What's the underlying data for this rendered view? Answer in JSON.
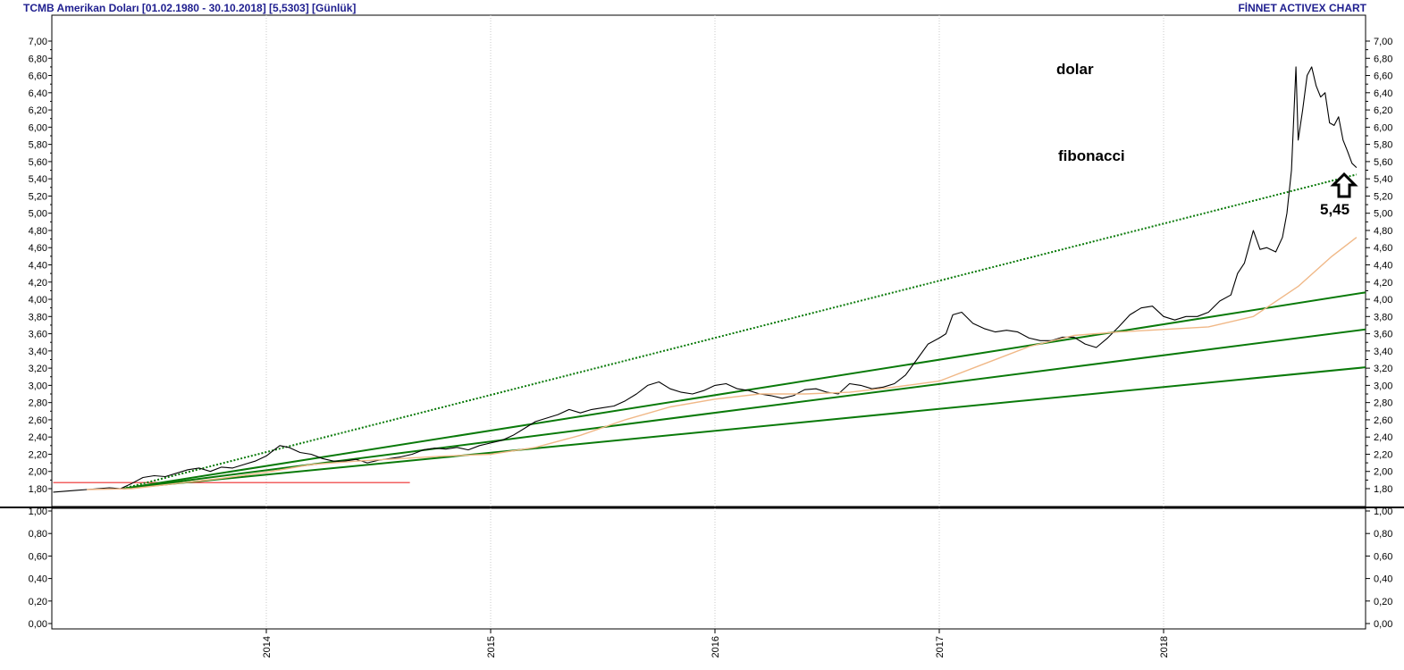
{
  "header": {
    "title_left": "TCMB Amerikan Doları  [01.02.1980 - 30.10.2018]  [5,5303]  [Günlük]",
    "title_right": "FİNNET ACTIVEX CHART"
  },
  "colors": {
    "price_line": "#000000",
    "moving_average": "#f0b887",
    "fan_lines": "#0a7a0a",
    "fibonacci_dotted": "#0a7a0a",
    "support_line": "#f26060",
    "grid": "#c8c8c8",
    "header_text": "#1f1f8f"
  },
  "annotations": {
    "dolar": "dolar",
    "fibonacci": "fibonacci",
    "level_label": "5,45",
    "arrow_icon": "up-arrow-icon"
  },
  "chart_data": [
    {
      "type": "line",
      "panel": "price",
      "xlabel": "",
      "ylabel": "",
      "x_ticks": [
        "2014",
        "2015",
        "2016",
        "2017",
        "2018"
      ],
      "y_ticks": [
        "1,80",
        "2,00",
        "2,20",
        "2,40",
        "2,60",
        "2,80",
        "3,00",
        "3,20",
        "3,40",
        "3,60",
        "3,80",
        "4,00",
        "4,20",
        "4,40",
        "4,60",
        "4,80",
        "5,00",
        "5,20",
        "5,40",
        "5,60",
        "5,80",
        "6,00",
        "6,20",
        "6,40",
        "6,60",
        "6,80",
        "7,00"
      ],
      "ylim": [
        1.6,
        7.0
      ],
      "xlim": [
        2013.05,
        2018.9
      ],
      "grid": "vertical",
      "series": [
        {
          "x": [
            2013.05,
            2013.1,
            2013.15,
            2013.2,
            2013.25,
            2013.3,
            2013.35,
            2013.4,
            2013.45,
            2013.5,
            2013.55,
            2013.6,
            2013.65,
            2013.7,
            2013.75,
            2013.8,
            2013.85,
            2013.9,
            2013.95,
            2014.0,
            2014.03,
            2014.06,
            2014.1,
            2014.15,
            2014.2,
            2014.25,
            2014.3,
            2014.35,
            2014.4,
            2014.45,
            2014.5,
            2014.55,
            2014.6,
            2014.65,
            2014.7,
            2014.75,
            2014.8,
            2014.85,
            2014.9,
            2014.95,
            2015.0,
            2015.05,
            2015.1,
            2015.15,
            2015.2,
            2015.25,
            2015.3,
            2015.35,
            2015.4,
            2015.45,
            2015.5,
            2015.55,
            2015.6,
            2015.65,
            2015.7,
            2015.75,
            2015.8,
            2015.85,
            2015.9,
            2015.95,
            2016.0,
            2016.05,
            2016.1,
            2016.15,
            2016.2,
            2016.25,
            2016.3,
            2016.35,
            2016.4,
            2016.45,
            2016.5,
            2016.55,
            2016.6,
            2016.65,
            2016.7,
            2016.75,
            2016.8,
            2016.85,
            2016.9,
            2016.95,
            2017.0,
            2017.03,
            2017.06,
            2017.1,
            2017.15,
            2017.2,
            2017.25,
            2017.3,
            2017.35,
            2017.4,
            2017.45,
            2017.5,
            2017.55,
            2017.6,
            2017.65,
            2017.7,
            2017.75,
            2017.8,
            2017.85,
            2017.9,
            2017.95,
            2018.0,
            2018.05,
            2018.1,
            2018.15,
            2018.2,
            2018.25,
            2018.3,
            2018.33,
            2018.36,
            2018.4,
            2018.43,
            2018.46,
            2018.5,
            2018.53,
            2018.55,
            2018.57,
            2018.59,
            2018.6,
            2018.62,
            2018.64,
            2018.66,
            2018.68,
            2018.7,
            2018.72,
            2018.74,
            2018.76,
            2018.78,
            2018.8,
            2018.82,
            2018.84,
            2018.86
          ],
          "values": [
            1.76,
            1.77,
            1.78,
            1.79,
            1.8,
            1.81,
            1.8,
            1.86,
            1.93,
            1.95,
            1.94,
            1.98,
            2.02,
            2.04,
            2.0,
            2.05,
            2.04,
            2.08,
            2.12,
            2.18,
            2.24,
            2.3,
            2.28,
            2.22,
            2.2,
            2.15,
            2.12,
            2.12,
            2.14,
            2.1,
            2.13,
            2.15,
            2.17,
            2.2,
            2.25,
            2.27,
            2.26,
            2.28,
            2.25,
            2.3,
            2.33,
            2.36,
            2.42,
            2.5,
            2.58,
            2.62,
            2.66,
            2.72,
            2.68,
            2.72,
            2.74,
            2.76,
            2.82,
            2.9,
            3.0,
            3.04,
            2.96,
            2.92,
            2.9,
            2.94,
            3.0,
            3.02,
            2.96,
            2.94,
            2.9,
            2.88,
            2.85,
            2.88,
            2.95,
            2.96,
            2.92,
            2.9,
            3.02,
            3.0,
            2.96,
            2.98,
            3.02,
            3.12,
            3.3,
            3.48,
            3.55,
            3.6,
            3.82,
            3.85,
            3.72,
            3.66,
            3.62,
            3.64,
            3.62,
            3.55,
            3.52,
            3.52,
            3.56,
            3.56,
            3.48,
            3.44,
            3.55,
            3.68,
            3.82,
            3.9,
            3.92,
            3.8,
            3.76,
            3.8,
            3.8,
            3.85,
            3.98,
            4.05,
            4.3,
            4.42,
            4.8,
            4.58,
            4.6,
            4.55,
            4.72,
            5.0,
            5.5,
            6.7,
            5.85,
            6.2,
            6.6,
            6.7,
            6.48,
            6.35,
            6.4,
            6.05,
            6.02,
            6.12,
            5.85,
            5.72,
            5.58,
            5.53
          ],
          "color": "#000000"
        },
        {
          "x": [
            2013.2,
            2013.4,
            2013.6,
            2013.8,
            2014.0,
            2014.2,
            2014.4,
            2014.6,
            2014.8,
            2015.0,
            2015.2,
            2015.4,
            2015.6,
            2015.8,
            2016.0,
            2016.2,
            2016.4,
            2016.6,
            2016.8,
            2017.0,
            2017.2,
            2017.4,
            2017.6,
            2017.8,
            2018.0,
            2018.2,
            2018.4,
            2018.6,
            2018.75,
            2018.86
          ],
          "values": [
            1.79,
            1.8,
            1.86,
            1.92,
            1.99,
            2.08,
            2.12,
            2.15,
            2.18,
            2.2,
            2.28,
            2.42,
            2.6,
            2.75,
            2.84,
            2.9,
            2.9,
            2.92,
            2.98,
            3.05,
            3.25,
            3.45,
            3.58,
            3.62,
            3.65,
            3.68,
            3.8,
            4.15,
            4.5,
            4.72
          ],
          "color": "#f0b887"
        }
      ],
      "fan_lines": [
        {
          "x": [
            2013.36,
            2018.9
          ],
          "values": [
            1.8,
            4.08
          ]
        },
        {
          "x": [
            2013.36,
            2018.9
          ],
          "values": [
            1.8,
            3.65
          ]
        },
        {
          "x": [
            2013.36,
            2018.9
          ],
          "values": [
            1.8,
            3.21
          ]
        },
        {
          "x": [
            2013.36,
            2018.86
          ],
          "values": [
            1.8,
            5.45
          ],
          "style": "dotted"
        }
      ],
      "horizontal_segments": [
        {
          "x": [
            2013.05,
            2014.64
          ],
          "value": 1.87
        }
      ]
    },
    {
      "type": "line",
      "panel": "indicator",
      "y_ticks": [
        "0,00",
        "0,20",
        "0,40",
        "0,60",
        "0,80",
        "1,00"
      ],
      "ylim": [
        0.0,
        1.0
      ],
      "series": []
    }
  ]
}
